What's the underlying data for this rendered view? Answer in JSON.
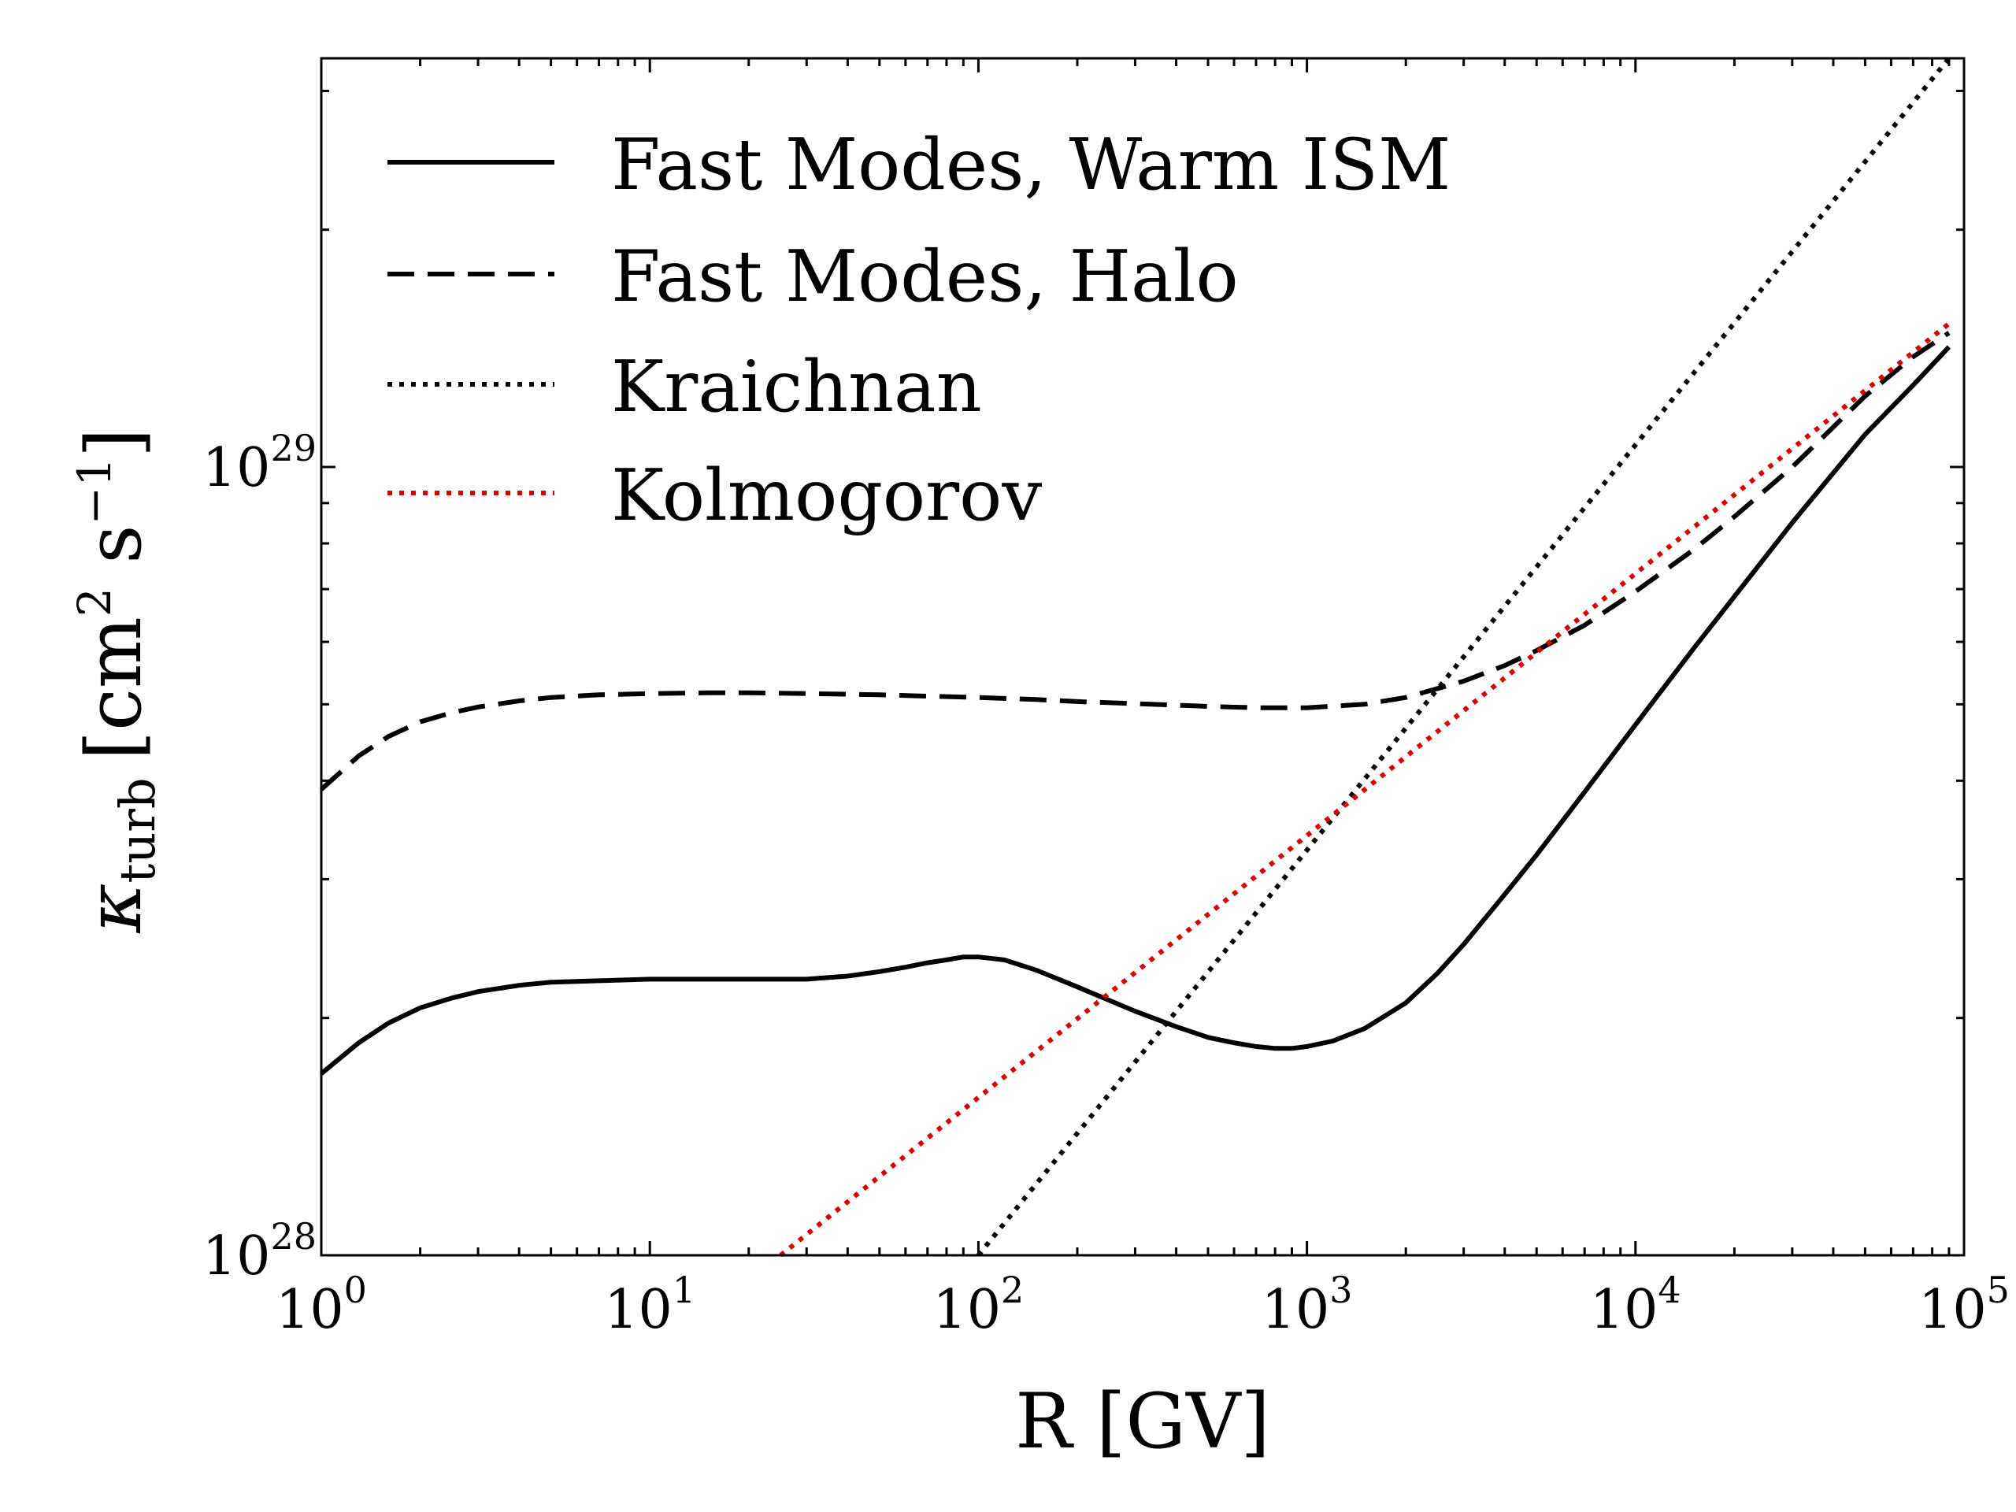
{
  "chart_data": {
    "type": "line",
    "title": "",
    "xlabel": "R [GV]",
    "ylabel": "κturb [cm² s⁻¹]",
    "ylabel_main": "κ",
    "ylabel_sub": "turb",
    "ylabel_units": "[cm",
    "ylabel_units_exp": "2",
    "ylabel_units_mid": " s",
    "ylabel_units_exp2": "−1",
    "ylabel_units_end": "]",
    "xscale": "log",
    "yscale": "log",
    "xlim": [
      1,
      100000
    ],
    "ylim": [
      1e+28,
      3.3e+29
    ],
    "legend_position": "top-left",
    "x_ticks": [
      {
        "base": "10",
        "exp": "0",
        "value": 1
      },
      {
        "base": "10",
        "exp": "1",
        "value": 10
      },
      {
        "base": "10",
        "exp": "2",
        "value": 100
      },
      {
        "base": "10",
        "exp": "3",
        "value": 1000
      },
      {
        "base": "10",
        "exp": "4",
        "value": 10000
      },
      {
        "base": "10",
        "exp": "5",
        "value": 100000
      }
    ],
    "y_ticks": [
      {
        "base": "10",
        "exp": "28",
        "value": 1e+28
      },
      {
        "base": "10",
        "exp": "29",
        "value": 1e+29
      }
    ],
    "series": [
      {
        "name": "Fast Modes, Warm ISM",
        "style": "solid",
        "color": "#000000",
        "x": [
          1,
          1.3,
          1.6,
          2,
          2.5,
          3,
          4,
          5,
          7,
          10,
          15,
          20,
          30,
          40,
          50,
          60,
          70,
          80,
          90,
          100,
          120,
          150,
          200,
          300,
          400,
          500,
          600,
          700,
          800,
          900,
          1000,
          1200,
          1500,
          2000,
          2500,
          3000,
          4000,
          5000,
          7000,
          10000,
          15000,
          20000,
          30000,
          50000,
          70000,
          90000
        ],
        "y": [
          1.7e+28,
          1.86e+28,
          1.97e+28,
          2.06e+28,
          2.12e+28,
          2.16e+28,
          2.2e+28,
          2.22e+28,
          2.23e+28,
          2.24e+28,
          2.24e+28,
          2.24e+28,
          2.24e+28,
          2.26e+28,
          2.29e+28,
          2.32e+28,
          2.35e+28,
          2.37e+28,
          2.39e+28,
          2.39e+28,
          2.37e+28,
          2.3e+28,
          2.19e+28,
          2.04e+28,
          1.95e+28,
          1.89e+28,
          1.86e+28,
          1.84e+28,
          1.83e+28,
          1.83e+28,
          1.84e+28,
          1.87e+28,
          1.94e+28,
          2.09e+28,
          2.28e+28,
          2.48e+28,
          2.87e+28,
          3.22e+28,
          3.87e+28,
          4.71e+28,
          5.88e+28,
          6.85e+28,
          8.5e+28,
          1.1e+29,
          1.27e+29,
          1.42e+29
        ]
      },
      {
        "name": "Fast Modes, Halo",
        "style": "dashed",
        "color": "#000000",
        "x": [
          1,
          1.3,
          1.6,
          2,
          2.5,
          3,
          4,
          5,
          7,
          10,
          15,
          20,
          30,
          50,
          70,
          100,
          150,
          200,
          300,
          500,
          700,
          1000,
          1500,
          2000,
          3000,
          4000,
          5000,
          7000,
          10000,
          15000,
          20000,
          30000,
          50000,
          70000,
          90000
        ],
        "y": [
          3.9e+28,
          4.3e+28,
          4.55e+28,
          4.75e+28,
          4.88e+28,
          4.96e+28,
          5.05e+28,
          5.1e+28,
          5.14e+28,
          5.16e+28,
          5.17e+28,
          5.17e+28,
          5.16e+28,
          5.14e+28,
          5.12e+28,
          5.1e+28,
          5.07e+28,
          5.04e+28,
          5.01e+28,
          4.97e+28,
          4.95e+28,
          4.95e+28,
          5e+28,
          5.1e+28,
          5.35e+28,
          5.6e+28,
          5.85e+28,
          6.3e+28,
          6.95e+28,
          7.85e+28,
          8.65e+28,
          1e+29,
          1.23e+29,
          1.38e+29,
          1.48e+29
        ]
      },
      {
        "name": "Kraichnan",
        "style": "dotted",
        "color": "#000000",
        "x": [
          100,
          90000
        ],
        "y": [
          1e+28,
          3.3e+29
        ]
      },
      {
        "name": "Kolmogorov",
        "style": "dotted",
        "color": "#e00000",
        "x": [
          25,
          90000
        ],
        "y": [
          1e+28,
          1.52e+29
        ]
      }
    ]
  }
}
